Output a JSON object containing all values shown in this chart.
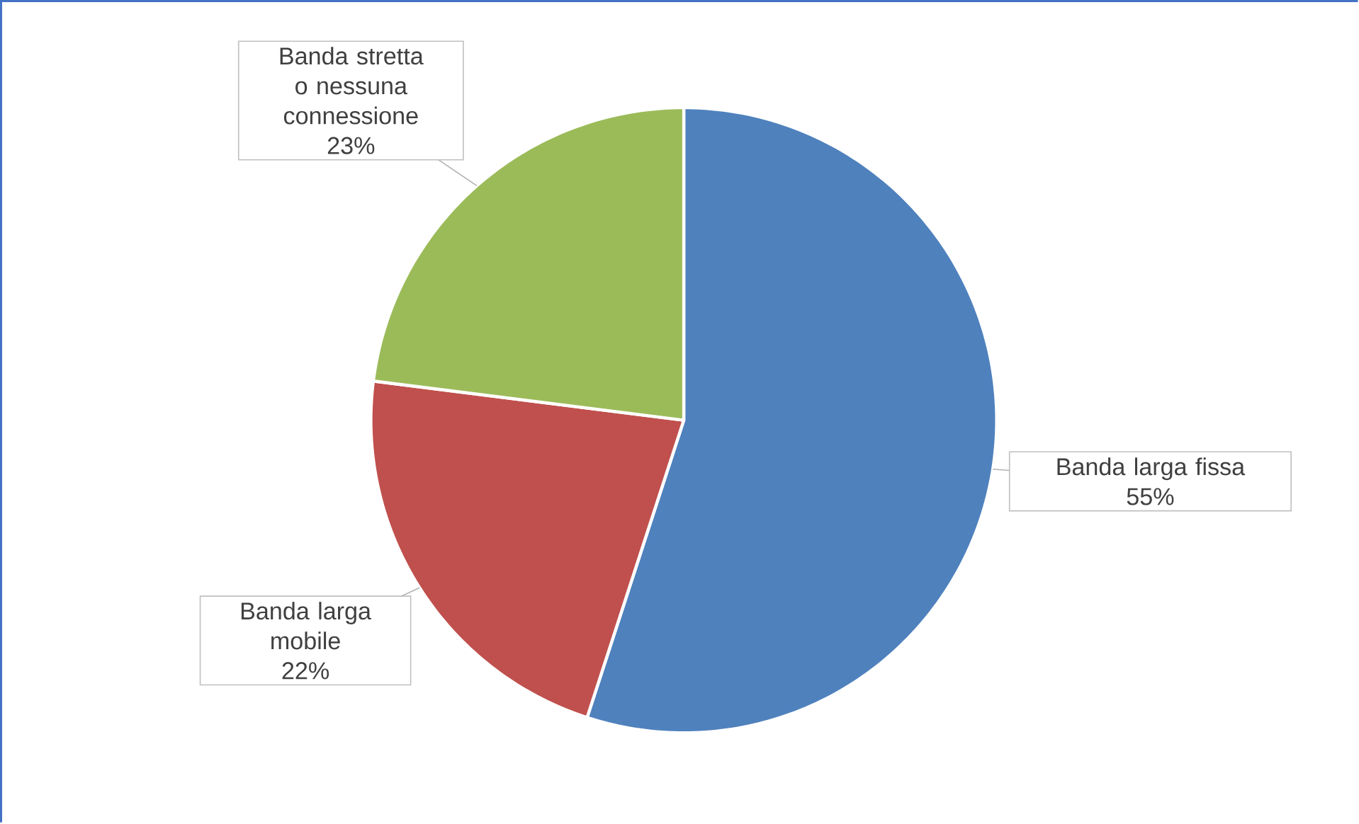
{
  "chart_data": {
    "type": "pie",
    "categories": [
      "Banda larga fissa",
      "Banda larga mobile",
      "Banda stretta o nessuna connessione"
    ],
    "values": [
      55,
      22,
      23
    ],
    "colors": [
      "#4f81bd",
      "#c0504d",
      "#9bbb59"
    ],
    "value_labels": [
      "55%",
      "22%",
      "23%"
    ]
  }
}
